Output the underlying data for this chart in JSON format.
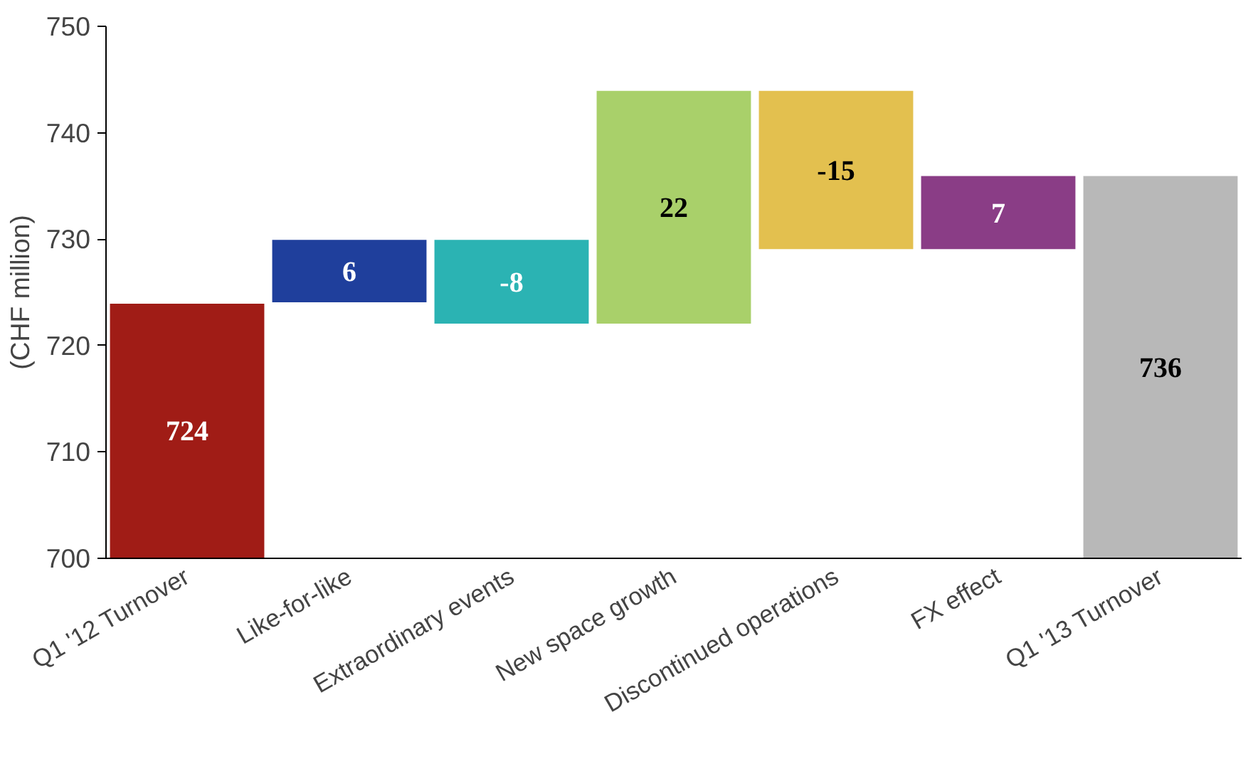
{
  "chart_data": {
    "type": "bar",
    "ylabel": "(CHF million)",
    "categories": [
      "Q1 '12 Turnover",
      "Like-for-like",
      "Extraordinary events",
      "New space growth",
      "Discontinued operations",
      "FX effect",
      "Q1 '13 Turnover"
    ],
    "values": [
      24,
      6,
      -8,
      22,
      -15,
      7,
      36
    ],
    "base": [
      700,
      724,
      730,
      722,
      744,
      729,
      700
    ],
    "value_labels": [
      "724",
      "6",
      "-8",
      "22",
      "-15",
      "7",
      "736"
    ],
    "colors": [
      "#a01c16",
      "#1f3f9c",
      "#2bb3b3",
      "#a9d06a",
      "#e3c04f",
      "#8a3d86",
      "#b8b8b8"
    ],
    "ylim": [
      700,
      750
    ],
    "yticks": [
      700,
      710,
      720,
      730,
      740,
      750
    ],
    "grid": false
  }
}
